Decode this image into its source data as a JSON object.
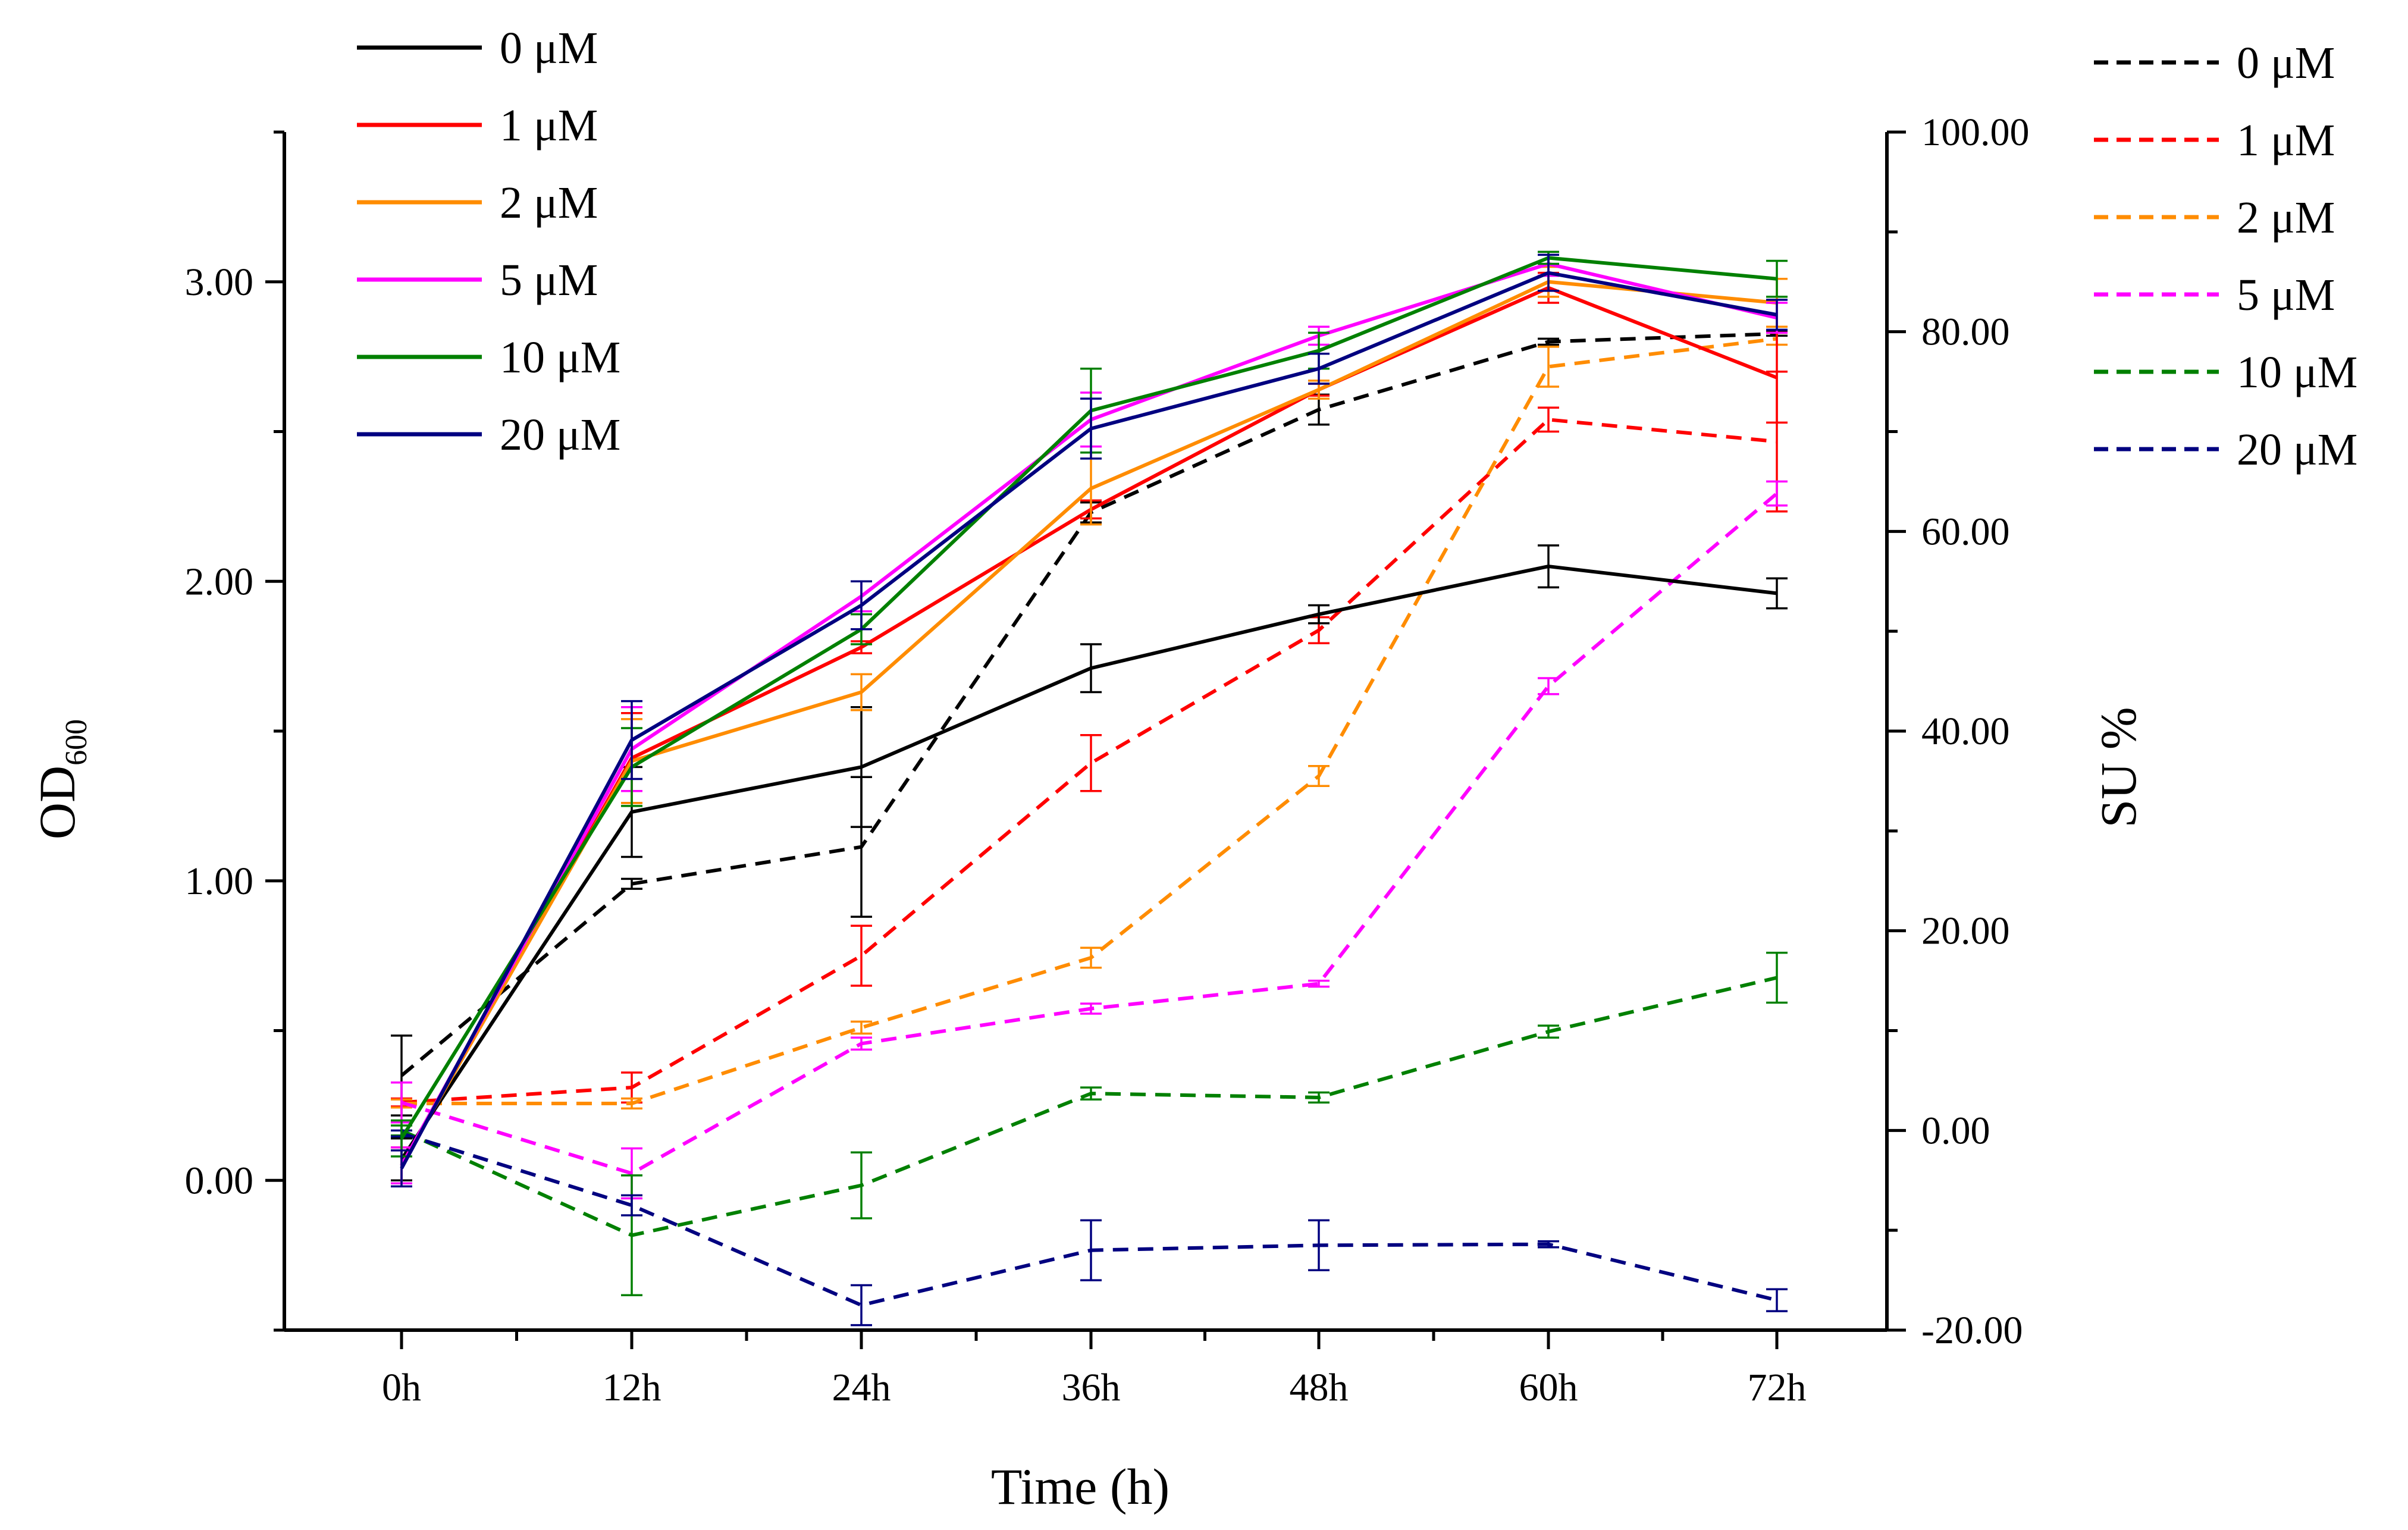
{
  "chart_data": {
    "type": "line",
    "x_categories": [
      "0h",
      "12h",
      "24h",
      "36h",
      "48h",
      "60h",
      "72h"
    ],
    "xlabel": "Time (h)",
    "left_axis": {
      "label_main": "OD",
      "label_sub": "600",
      "ylim": [
        -0.5,
        3.5
      ],
      "ticks": [
        0,
        1,
        2,
        3
      ],
      "tick_labels": [
        "0.00",
        "1.00",
        "2.00",
        "3.00"
      ]
    },
    "right_axis": {
      "label": "SU %",
      "ylim": [
        -20,
        100
      ],
      "ticks": [
        -20,
        0,
        20,
        40,
        60,
        80,
        100
      ],
      "tick_labels": [
        "-20.00",
        "0.00",
        "20.00",
        "40.00",
        "60.00",
        "80.00",
        "100.00"
      ]
    },
    "od_series": [
      {
        "name": "0 μM",
        "color": "#000000",
        "values": [
          0.07,
          1.23,
          1.38,
          1.71,
          1.89,
          2.05,
          1.96
        ],
        "errors": [
          0.07,
          0.15,
          0.2,
          0.08,
          0.03,
          0.07,
          0.05
        ]
      },
      {
        "name": "1 μM",
        "color": "#ff0000",
        "values": [
          0.05,
          1.41,
          1.78,
          2.24,
          2.64,
          2.98,
          2.68
        ],
        "errors": [
          0.06,
          0.15,
          0.02,
          0.03,
          0.02,
          0.05,
          0.15
        ]
      },
      {
        "name": "2 μM",
        "color": "#ff8c00",
        "values": [
          0.05,
          1.4,
          1.63,
          2.31,
          2.64,
          3.0,
          2.93
        ],
        "errors": [
          0.06,
          0.14,
          0.06,
          0.12,
          0.03,
          0.05,
          0.08
        ]
      },
      {
        "name": "5 μM",
        "color": "#ff00ff",
        "values": [
          0.05,
          1.44,
          1.95,
          2.54,
          2.82,
          3.06,
          2.88
        ],
        "errors": [
          0.06,
          0.14,
          0.05,
          0.09,
          0.03,
          0.04,
          0.05
        ]
      },
      {
        "name": "10 μM",
        "color": "#008000",
        "values": [
          0.14,
          1.38,
          1.84,
          2.57,
          2.77,
          3.08,
          3.01
        ],
        "errors": [
          0.06,
          0.13,
          0.05,
          0.14,
          0.06,
          0.02,
          0.06
        ]
      },
      {
        "name": "20 μM",
        "color": "#000080",
        "values": [
          0.04,
          1.47,
          1.92,
          2.51,
          2.71,
          3.03,
          2.89
        ],
        "errors": [
          0.06,
          0.13,
          0.08,
          0.1,
          0.05,
          0.06,
          0.05
        ]
      }
    ],
    "su_series": [
      {
        "name": "0 μM",
        "color": "#000000",
        "values": [
          5.5,
          24.7,
          28.4,
          61.9,
          72.2,
          79.0,
          79.8
        ],
        "errors": [
          4.0,
          0.5,
          7.0,
          1.0,
          1.5,
          0.3,
          0.2
        ]
      },
      {
        "name": "1 μM",
        "color": "#ff0000",
        "values": [
          2.8,
          4.3,
          17.5,
          36.8,
          50.1,
          71.2,
          69.0
        ],
        "errors": [
          0.4,
          1.5,
          3.0,
          2.8,
          1.3,
          1.2,
          7.0
        ]
      },
      {
        "name": "2 μM",
        "color": "#ff8c00",
        "values": [
          2.7,
          2.7,
          10.3,
          17.3,
          35.5,
          76.5,
          79.3
        ],
        "errors": [
          0.4,
          0.5,
          0.6,
          1.0,
          1.0,
          2.0,
          0.6
        ]
      },
      {
        "name": "5 μM",
        "color": "#ff00ff",
        "values": [
          2.8,
          -4.3,
          8.7,
          12.2,
          14.7,
          44.5,
          63.8
        ],
        "errors": [
          2.0,
          2.5,
          0.6,
          0.5,
          0.3,
          0.8,
          1.2
        ]
      },
      {
        "name": "10 μM",
        "color": "#008000",
        "values": [
          0.0,
          -10.5,
          -5.5,
          3.7,
          3.3,
          9.9,
          15.3
        ],
        "errors": [
          0.5,
          6.0,
          3.3,
          0.6,
          0.5,
          0.6,
          2.5
        ]
      },
      {
        "name": "20 μM",
        "color": "#000080",
        "values": [
          -0.3,
          -7.5,
          -17.5,
          -12.0,
          -11.5,
          -11.4,
          -17.0
        ],
        "errors": [
          0.3,
          1.0,
          2.0,
          3.0,
          2.5,
          0.3,
          1.1
        ]
      }
    ]
  }
}
